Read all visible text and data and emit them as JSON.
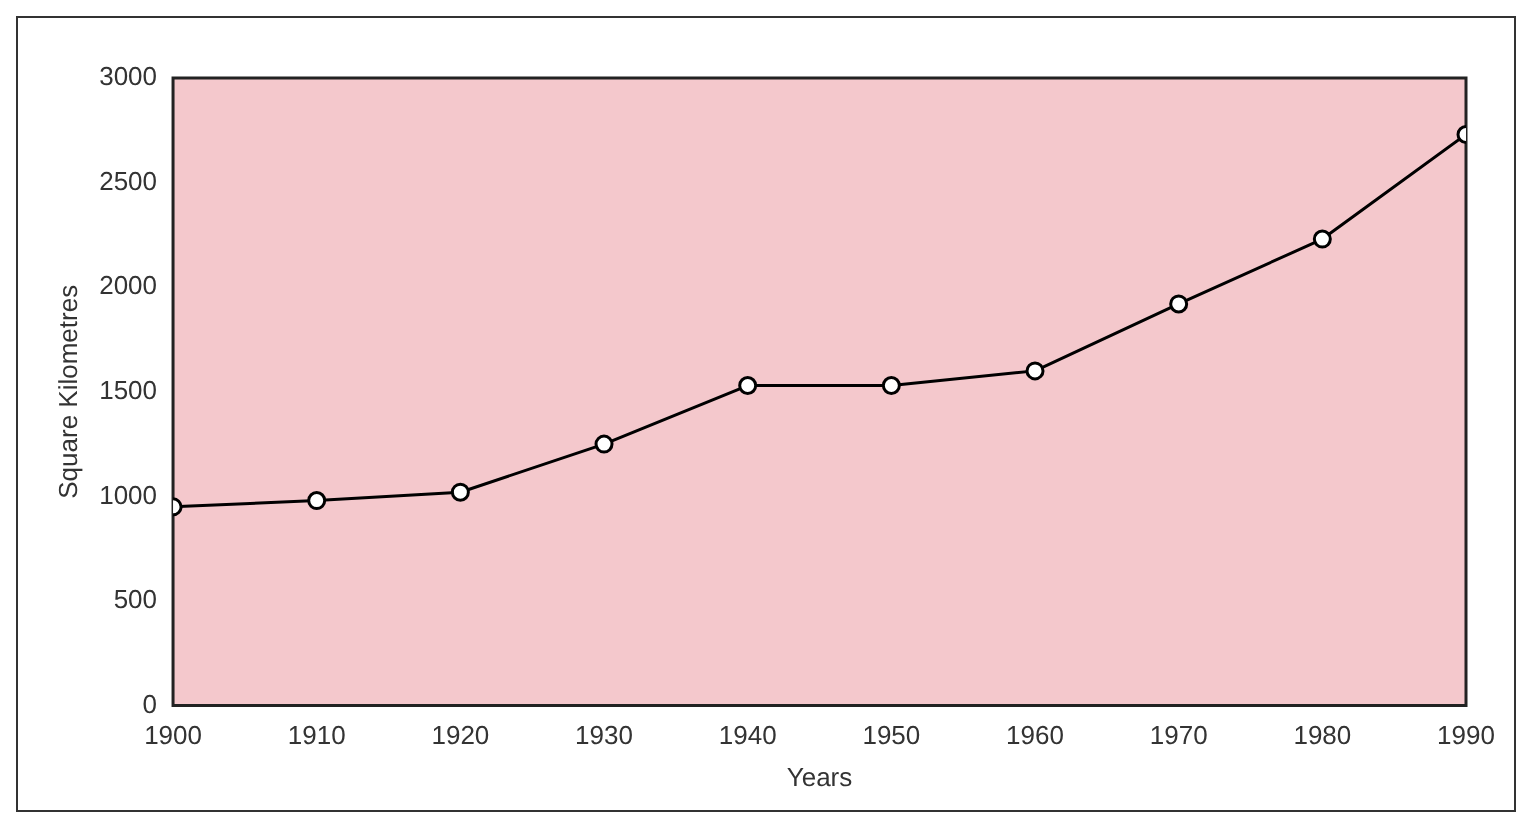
{
  "chart_data": {
    "type": "line",
    "xlabel": "Years",
    "ylabel": "Square Kilometres",
    "x": [
      1900,
      1910,
      1920,
      1930,
      1940,
      1950,
      1960,
      1970,
      1980,
      1990
    ],
    "series": [
      {
        "color": "#000000",
        "values": [
          950,
          980,
          1020,
          1250,
          1530,
          1530,
          1600,
          1920,
          2230,
          2730
        ]
      }
    ],
    "xlim": [
      1900,
      1990
    ],
    "xticks": [
      1900,
      1910,
      1920,
      1930,
      1940,
      1950,
      1960,
      1970,
      1980,
      1990
    ],
    "ylim": [
      0,
      3000
    ],
    "yticks": [
      0,
      500,
      1000,
      1500,
      2000,
      2500,
      3000
    ],
    "grid": false,
    "legend": false,
    "marker": "circle",
    "line_style": "solid"
  }
}
